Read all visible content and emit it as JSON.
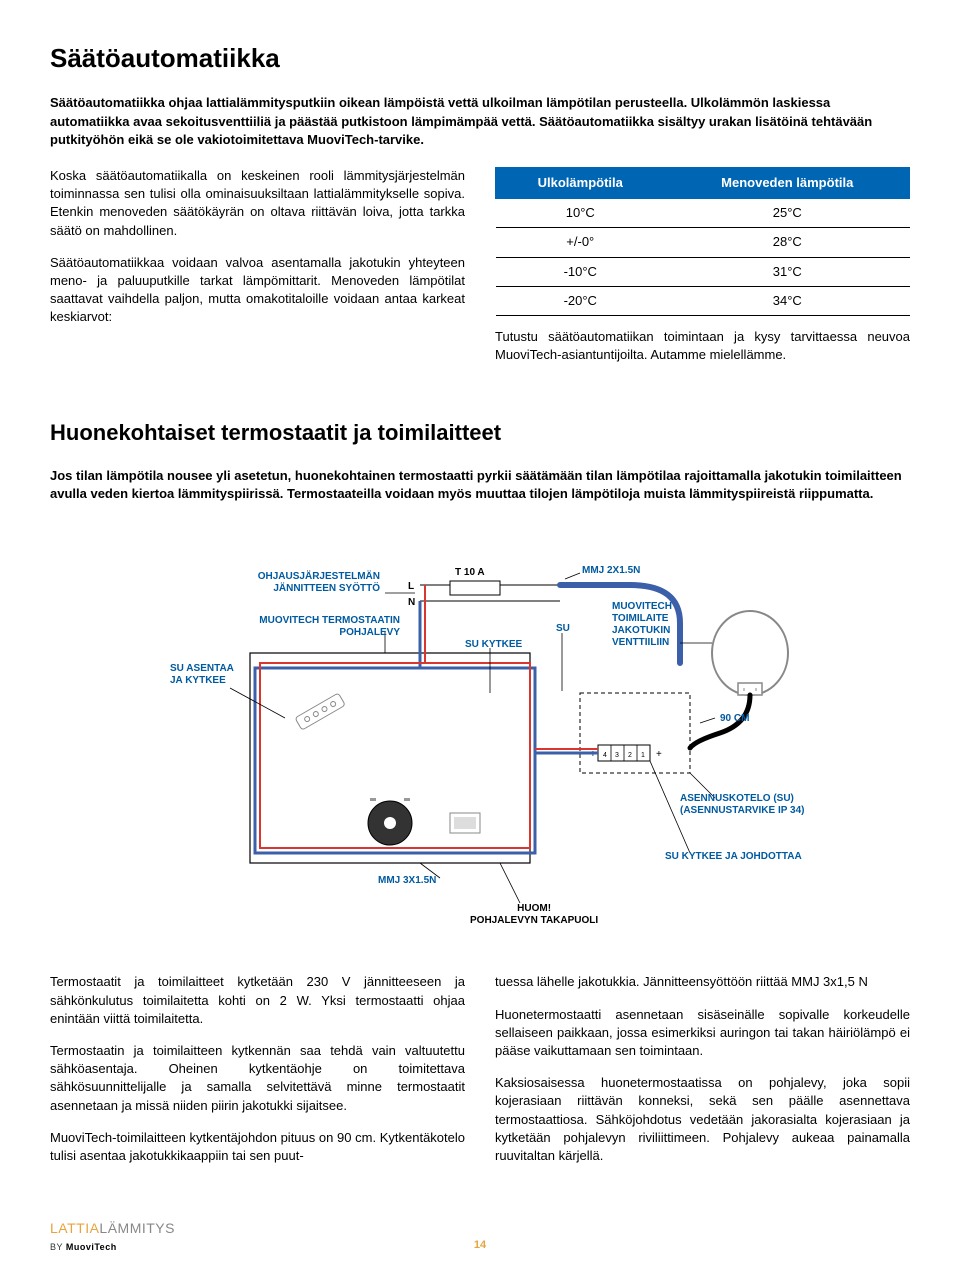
{
  "section1": {
    "title": "Säätöautomatiikka",
    "intro": "Säätöautomatiikka ohjaa lattialämmitysputkiin oikean lämpöistä vettä ulkoilman lämpötilan perusteella. Ulkolämmön laskiessa automatiikka avaa sekoitusventtiiliä ja päästää putkistoon lämpimämpää vettä. Säätöautomatiikka sisältyy urakan lisätöinä tehtävään putkityöhön eikä se ole vakiotoimitettava MuoviTech-tarvike.",
    "left_p1": "Koska säätöautomatiikalla on keskeinen rooli lämmitysjärjestelmän toiminnassa sen tulisi olla ominaisuuksiltaan lattialämmitykselle sopiva. Etenkin menoveden säätökäyrän on oltava riittävän loiva, jotta tarkka säätö on mahdollinen.",
    "left_p2": "Säätöautomatiikkaa voidaan valvoa asentamalla jakotukin yhteyteen meno- ja paluuputkille tarkat lämpömittarit. Menoveden lämpötilat saattavat vaihdella paljon, mutta omakotitaloille voidaan antaa karkeat keskiarvot:",
    "right_p": "Tutustu säätöautomatiikan toimintaan ja kysy tarvittaessa neuvoa MuoviTech-asiantuntijoilta. Autamme mielellämme.",
    "table": {
      "header_col1": "Ulkolämpötila",
      "header_col2": "Menoveden lämpötila",
      "rows": [
        [
          "10°C",
          "25°C"
        ],
        [
          "+/-0°",
          "28°C"
        ],
        [
          "-10°C",
          "31°C"
        ],
        [
          "-20°C",
          "34°C"
        ]
      ]
    }
  },
  "section2": {
    "title": "Huonekohtaiset termostaatit ja toimilaitteet",
    "intro": "Jos tilan lämpötila nousee yli asetetun, huonekohtainen termostaatti pyrkii säätämään tilan lämpötilaa rajoittamalla jakotukin toimilaitteen avulla veden kiertoa lämmityspiirissä. Termostaateilla voidaan myös muuttaa tilojen lämpötiloja muista lämmityspiireistä riippumatta.",
    "diagram": {
      "labels": {
        "ohjaus": "OHJAUSJÄRJESTELMÄN\nJÄNNITTEEN SYÖTTÖ",
        "t10a": "T 10 A",
        "mmj_2x": "MMJ 2X1.5N",
        "muovitech_term": "MUOVITECH TERMOSTAATIN\nPOHJALEVY",
        "su_asentaa": "SU ASENTAA\nJA KYTKEE",
        "su": "SU",
        "su_kytkee": "SU KYTKEE",
        "toimilaite": "MUOVITECH\nTOIMILAITE\nJAKOTUKIN\nVENTTIILIIN",
        "cm90": "90 CM",
        "asennuskotelo": "ASENNUSKOTELO (SU)\n(ASENNUSTARVIKE IP 34)",
        "su_kytkee_johd": "SU  KYTKEE JA JOHDOTTAA",
        "mmj_3x": "MMJ 3X1.5N",
        "huom": "HUOM!\nPOHJALEVYN TAKAPUOLI",
        "L": "L",
        "N": "N",
        "terminals": "4 3 2 1"
      }
    },
    "left_p1": "Termostaatit ja toimilaitteet kytketään 230 V jännitteeseen ja sähkönkulutus toimilaitetta kohti on 2 W. Yksi termostaatti ohjaa enintään viittä toimilaitetta.",
    "left_p2": "Termostaatin ja toimilaitteen kytkennän saa tehdä vain valtuutettu sähköasentaja. Oheinen kytkentäohje on toimitettava sähkösuunnittelijalle ja samalla selvitettävä minne termostaatit asennetaan ja missä niiden piirin jakotukki sijaitsee.",
    "left_p3": "MuoviTech-toimilaitteen kytkentäjohdon pituus on 90 cm. Kytkentäkotelo tulisi asentaa jakotukkikaappiin tai sen puut-",
    "right_p1": "tuessa lähelle jakotukkia. Jännitteensyöttöön riittää MMJ 3x1,5 N",
    "right_p2": "Huonetermostaatti asennetaan sisäseinälle sopivalle korkeudelle sellaiseen paikkaan, jossa esimerkiksi auringon tai takan häiriölämpö ei pääse vaikuttamaan sen toimintaan.",
    "right_p3": "Kaksiosaisessa huonetermostaatissa on pohjalevy, joka sopii kojerasiaan riittävän konneksi, sekä sen päälle asennettava termostaattiosa. Sähköjohdotus vedetään jakorasialta kojerasiaan ja kytketään pohjalevyn riviliittimeen. Pohjalevy aukeaa painamalla ruuvitaltan kärjellä."
  },
  "footer": {
    "lattia": "LATTIA",
    "lammitys": "LÄMMITYS",
    "by": "BY",
    "muovi": "MuoviTech",
    "page": "14"
  }
}
